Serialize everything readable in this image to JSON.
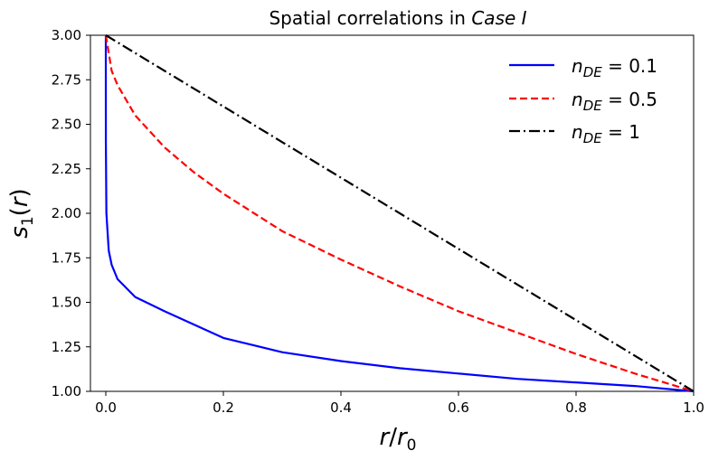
{
  "chart_data": {
    "type": "line",
    "title": {
      "prefix": "Spatial correlations in ",
      "italic": "Case I"
    },
    "xlabel": {
      "r": "r",
      "slash": "/",
      "r0": "r",
      "sub": "0"
    },
    "ylabel": {
      "s": "s",
      "sub": "1",
      "rest1": "(",
      "r": "r",
      "rest2": ")"
    },
    "xlim": [
      0.0,
      1.0
    ],
    "ylim": [
      1.0,
      3.0
    ],
    "x_ticks": [
      0.0,
      0.2,
      0.4,
      0.6,
      0.8,
      1.0
    ],
    "x_tick_labels": [
      "0.0",
      "0.2",
      "0.4",
      "0.6",
      "0.8",
      "1.0"
    ],
    "y_ticks": [
      1.0,
      1.25,
      1.5,
      1.75,
      2.0,
      2.25,
      2.5,
      2.75,
      3.0
    ],
    "y_tick_labels": [
      "1.00",
      "1.25",
      "1.50",
      "1.75",
      "2.00",
      "2.25",
      "2.50",
      "2.75",
      "3.00"
    ],
    "legend_position": "top-right",
    "series": [
      {
        "key": "n01",
        "legend": {
          "var": "n",
          "sub": "DE",
          "eq": " = 0.1"
        },
        "color": "#0000ff",
        "dash": "solid",
        "x": [
          0.0,
          0.0001,
          0.001,
          0.005,
          0.01,
          0.02,
          0.05,
          0.1,
          0.2,
          0.3,
          0.4,
          0.5,
          0.6,
          0.7,
          0.8,
          0.9,
          1.0
        ],
        "y": [
          3.0,
          2.4,
          2.0,
          1.79,
          1.71,
          1.63,
          1.53,
          1.45,
          1.3,
          1.22,
          1.17,
          1.13,
          1.1,
          1.07,
          1.05,
          1.03,
          1.0
        ]
      },
      {
        "key": "n05",
        "legend": {
          "var": "n",
          "sub": "DE",
          "eq": " = 0.5"
        },
        "color": "#ff0000",
        "dash": "dashed",
        "x": [
          0.0,
          0.01,
          0.02,
          0.05,
          0.1,
          0.15,
          0.2,
          0.3,
          0.4,
          0.5,
          0.6,
          0.7,
          0.8,
          0.9,
          1.0
        ],
        "y": [
          3.0,
          2.8,
          2.72,
          2.55,
          2.37,
          2.23,
          2.11,
          1.9,
          1.74,
          1.59,
          1.45,
          1.33,
          1.21,
          1.1,
          1.0
        ]
      },
      {
        "key": "n1",
        "legend": {
          "var": "n",
          "sub": "DE",
          "eq": " = 1"
        },
        "color": "#000000",
        "dash": "dashdot",
        "x": [
          0.0,
          1.0
        ],
        "y": [
          3.0,
          1.0
        ]
      }
    ]
  }
}
